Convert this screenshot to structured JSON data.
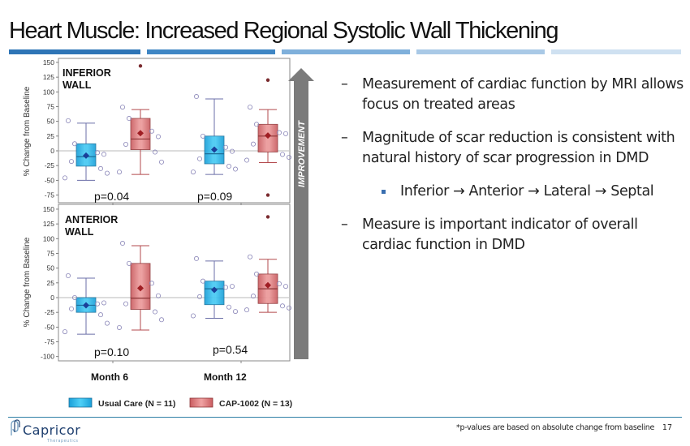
{
  "slide": {
    "title": "Heart Muscle: Increased Regional Systolic Wall Thickening",
    "title_bar_colors": [
      "#2e75b6",
      "#3f86c4",
      "#7fb0db",
      "#a9c9e6",
      "#cfe1f1"
    ],
    "bullets": [
      "Measurement of cardiac function by MRI allows focus on treated areas",
      "Magnitude of scar reduction is consistent with natural history of scar progression in DMD"
    ],
    "sub_bullet": "Inferior → Anterior → Lateral → Septal",
    "bullets_after": [
      "Measure is important indicator of overall cardiac function in DMD"
    ],
    "bullet_dash": "–",
    "footnote": "*p-values are based on absolute change from baseline",
    "page_number": "17",
    "logo": {
      "name": "Capricor",
      "subtitle": "Therapeutics"
    }
  },
  "chart_data": [
    {
      "type": "box",
      "panel": "INFERIOR WALL",
      "panel_label_lines": [
        "INFERIOR",
        "WALL"
      ],
      "ylabel": "% Change from Baseline",
      "ylim": [
        -90,
        155
      ],
      "yticks": [
        150,
        125,
        100,
        75,
        50,
        25,
        0,
        -25,
        -50,
        -75
      ],
      "categories": [
        "Month 6",
        "Month 12"
      ],
      "p_values": [
        "p=0.04",
        "p=0.09"
      ],
      "series": [
        {
          "name": "Usual Care (N = 11)",
          "color": "#29b6ea",
          "stats": [
            {
              "q1": -26,
              "median": -10,
              "q3": 12,
              "mean": -8,
              "whisker_low": -50,
              "whisker_high": 47
            },
            {
              "q1": -22,
              "median": -5,
              "q3": 25,
              "mean": 2,
              "whisker_low": -40,
              "whisker_high": 88
            }
          ]
        },
        {
          "name": "CAP-1002 (N = 13)",
          "color": "#d9787a",
          "stats": [
            {
              "q1": 2,
              "median": 20,
              "q3": 55,
              "mean": 30,
              "whisker_low": -40,
              "whisker_high": 70,
              "outliers": [
                144
              ]
            },
            {
              "q1": -2,
              "median": 25,
              "q3": 45,
              "mean": 26,
              "whisker_low": -20,
              "whisker_high": 70,
              "outliers": [
                120,
                -75
              ]
            }
          ]
        }
      ]
    },
    {
      "type": "box",
      "panel": "ANTERIOR WALL",
      "panel_label_lines": [
        "ANTERIOR",
        "WALL"
      ],
      "ylabel": "% Change from Baseline",
      "ylim": [
        -105,
        155
      ],
      "yticks": [
        150,
        125,
        100,
        75,
        50,
        25,
        0,
        -25,
        -50,
        -75,
        -100
      ],
      "categories": [
        "Month 6",
        "Month 12"
      ],
      "p_values": [
        "p=0.10",
        "p=0.54"
      ],
      "series": [
        {
          "name": "Usual Care (N = 11)",
          "color": "#29b6ea",
          "stats": [
            {
              "q1": -25,
              "median": -13,
              "q3": 0,
              "mean": -13,
              "whisker_low": -62,
              "whisker_high": 33
            },
            {
              "q1": -12,
              "median": 15,
              "q3": 28,
              "mean": 13,
              "whisker_low": -35,
              "whisker_high": 62
            }
          ]
        },
        {
          "name": "CAP-1002 (N = 13)",
          "color": "#d9787a",
          "stats": [
            {
              "q1": -20,
              "median": -1,
              "q3": 58,
              "mean": 16,
              "whisker_low": -55,
              "whisker_high": 88
            },
            {
              "q1": -10,
              "median": 15,
              "q3": 40,
              "mean": 21,
              "whisker_low": -25,
              "whisker_high": 65,
              "outliers": [
                137
              ]
            }
          ]
        }
      ]
    }
  ],
  "x_labels": [
    "Month 6",
    "Month 12"
  ],
  "legend": [
    {
      "label": "Usual Care (N = 11)",
      "color": "#29b6ea"
    },
    {
      "label": "CAP-1002 (N = 13)",
      "color": "#d9787a"
    }
  ],
  "improvement_label": "IMPROVEMENT"
}
